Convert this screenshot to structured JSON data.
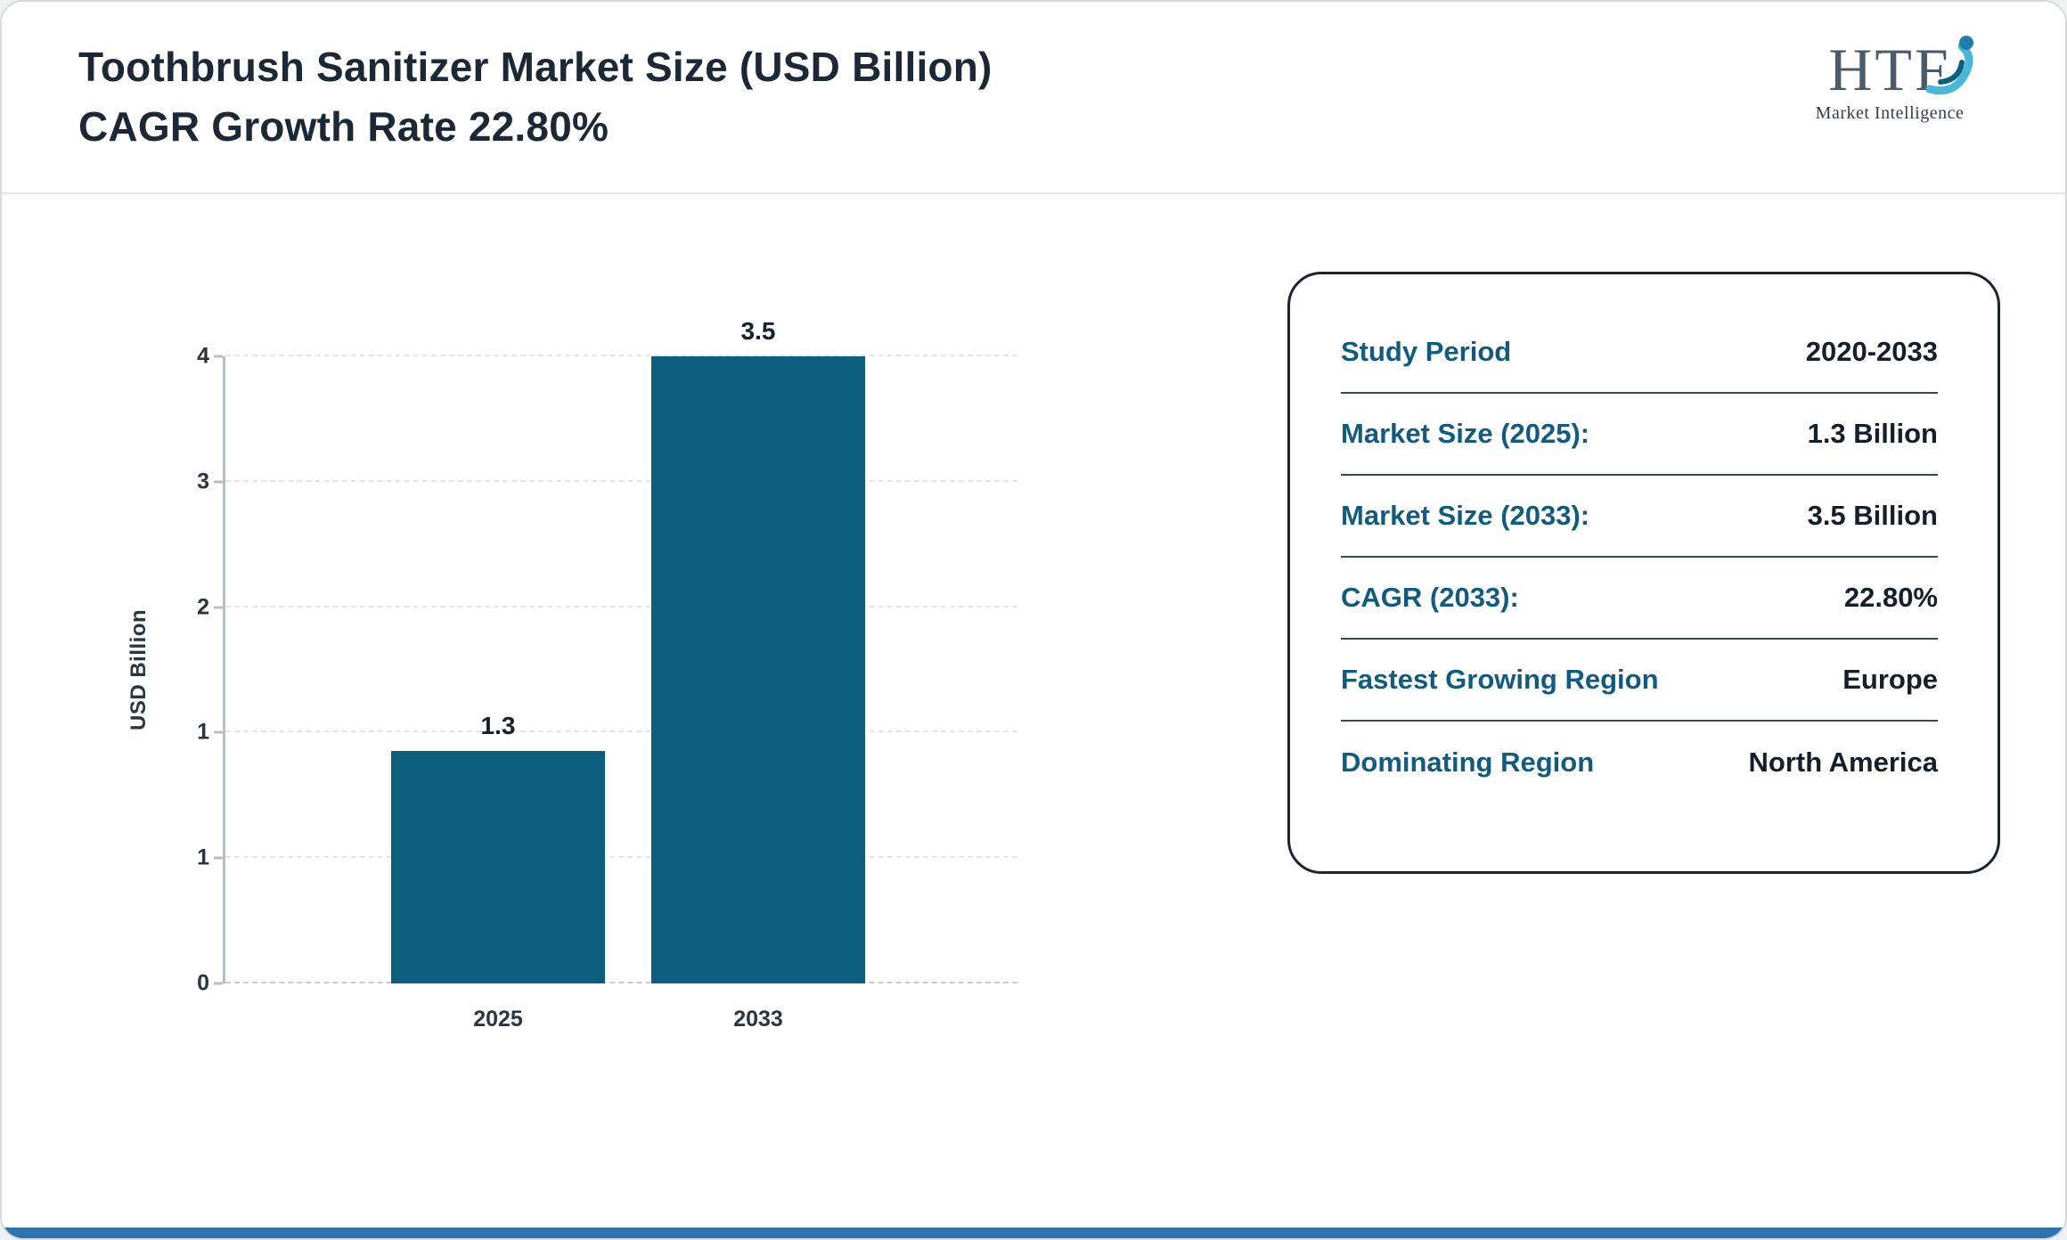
{
  "header": {
    "title_line1": "Toothbrush Sanitizer Market Size (USD Billion)",
    "title_line2": "CAGR Growth Rate 22.80%",
    "logo_text": "HTF",
    "logo_subtext": "Market Intelligence"
  },
  "chart_data": {
    "type": "bar",
    "title": "Toothbrush Sanitizer Market Size (USD Billion) CAGR Growth Rate 22.80%",
    "categories": [
      "2025",
      "2033"
    ],
    "values": [
      1.3,
      3.5
    ],
    "data_labels": [
      "1.3",
      "3.5"
    ],
    "xlabel": "",
    "ylabel": "USD Billion",
    "ylim": [
      0,
      3.5
    ],
    "ytick_labels_bottom_to_top": [
      "0",
      "1",
      "1",
      "2",
      "3",
      "4"
    ],
    "grid": "horizontal-dashed",
    "legend": "none",
    "bar_color": "#0d5d7f"
  },
  "info_card": {
    "rows": [
      {
        "label": "Study Period",
        "value": "2020-2033"
      },
      {
        "label": "Market Size (2025):",
        "value": "1.3 Billion"
      },
      {
        "label": "Market Size (2033):",
        "value": "3.5 Billion"
      },
      {
        "label": "CAGR (2033):",
        "value": "22.80%"
      },
      {
        "label": "Fastest Growing Region",
        "value": "Europe"
      },
      {
        "label": "Dominating Region",
        "value": "North America"
      }
    ]
  },
  "colors": {
    "bar": "#0d5d7f",
    "card_label": "#135a7f",
    "value_text": "#16212d",
    "title_text": "#1c2836",
    "bottom_strip": "#2e72ae",
    "logo_accent_light": "#49b8d8",
    "logo_accent_dark": "#1f7fa8"
  }
}
